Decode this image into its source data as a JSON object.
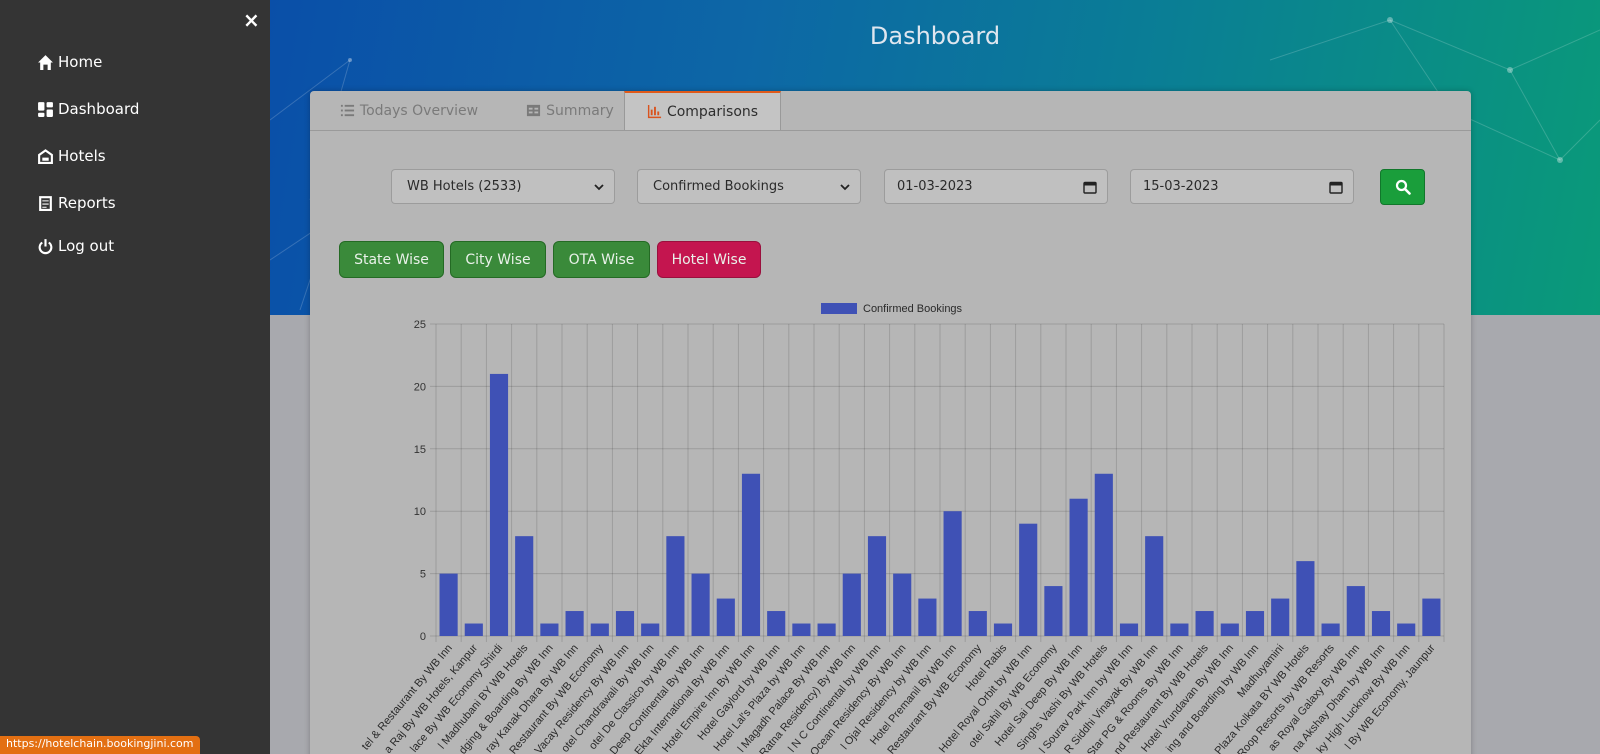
{
  "sidebar": {
    "close": "×",
    "items": [
      {
        "label": "Home",
        "icon": "home-icon"
      },
      {
        "label": "Dashboard",
        "icon": "dashboard-icon"
      },
      {
        "label": "Hotels",
        "icon": "hotel-icon"
      },
      {
        "label": "Reports",
        "icon": "report-icon"
      },
      {
        "label": "Log out",
        "icon": "power-icon"
      }
    ]
  },
  "page": {
    "title": "Dashboard"
  },
  "tabs": [
    {
      "label": "Todays Overview",
      "icon": "list-icon",
      "active": false
    },
    {
      "label": "Summary",
      "icon": "table-icon",
      "active": false
    },
    {
      "label": "Comparisons",
      "icon": "bar-chart-icon",
      "active": true
    }
  ],
  "filters": {
    "hotel_group": "WB Hotels (2533)",
    "metric": "Confirmed Bookings",
    "date_from": "01-03-2023",
    "date_to": "15-03-2023"
  },
  "group_buttons": [
    {
      "label": "State Wise",
      "active": false
    },
    {
      "label": "City Wise",
      "active": false
    },
    {
      "label": "OTA Wise",
      "active": false
    },
    {
      "label": "Hotel Wise",
      "active": true
    }
  ],
  "colors": {
    "bar": "#3f51b5",
    "active_button": "#c4154f",
    "button": "#3a8a3a",
    "search": "#1a9e3b",
    "tab_accent": "#e05a1a"
  },
  "status_url": "https://hotelchain.bookingjini.com",
  "chart_data": {
    "type": "bar",
    "legend": "Confirmed Bookings",
    "legend_position": "top",
    "ylim": [
      0,
      25
    ],
    "yticks": [
      0,
      5,
      10,
      15,
      20,
      25
    ],
    "grid": true,
    "categories": [
      "tel & Restaurant By WB Inn",
      "a Raj By WB Hotels, Kanpur",
      "lace By WB Economy Shirdi",
      "l Madhubani BY WB Hotels",
      "dging & Boarding By WB Inn",
      "ray Kanak Dhara By WB Inn",
      "Restaurant By WB Economy",
      "Vacay Residency By WB Inn",
      "otel Chandrawali By WB Inn",
      "otel De Classico by WB Inn",
      "Deep Continental By WB Inn",
      "Ekta International By WB Inn",
      "Hotel Empire Inn By WB Inn",
      "Hotel Gaylord by WB Inn",
      "Hotel Lal's Plaza by WB Inn",
      "l Magadh Palace By WB Inn",
      "Ratna Residency) By WB Inn",
      "l N C Continental by WB Inn",
      "Ocean Residency By WB Inn",
      "l Ojal Residency by WB Inn",
      "Hotel Premanil By WB Inn",
      "Restaurant By WB Economy",
      "Hotel Rabis",
      "Hotel Royal Orbit by WB Inn",
      "otel Sahil By WB Economy",
      "Hotel Sai Deep By WB Inn",
      "Singhs Vashi By WB Hotels",
      "l Sourav Park Inn by WB Inn",
      "R Siddhi Vinayak By WB Inn",
      "Star PG & Rooms By WB Inn",
      "nd Restaurant By WB Hotels",
      "Hotel Vrundavan By WB Inn",
      "ing and Boarding by WB Inn",
      "Madhuyamini",
      "Plaza Kolkata BY WB Hotels",
      "Roop Resorts by WB Resorts",
      "as Royal Galaxy By WB Inn",
      "na Akshay Dham by WB Inn",
      "ky High Lucknow By WB Inn",
      "l By WB Economy, Jaunpur"
    ],
    "values": [
      5,
      1,
      21,
      8,
      1,
      2,
      1,
      2,
      1,
      8,
      5,
      3,
      13,
      2,
      1,
      1,
      5,
      8,
      5,
      3,
      10,
      2,
      1,
      9,
      4,
      11,
      13,
      1,
      8,
      1,
      2,
      1,
      2,
      3,
      6,
      1,
      4,
      2,
      1,
      3
    ]
  }
}
